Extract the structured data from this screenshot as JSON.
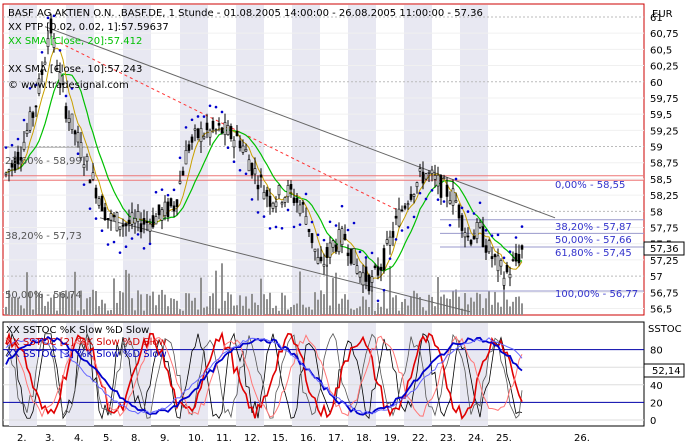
{
  "main_panel": {
    "title": "BASF AG AKTIEN O.N. .BASF.DE, 1 Stunde - 01.08.2005 14:00:00 - 26.08.2005 11:00:00 - 57.36",
    "legend": [
      {
        "text": "XX PTP [0.02, 0.02, 1]:57.59637",
        "color": "#000000"
      },
      {
        "text": "XX SMA [Close, 20]:57.412",
        "color": "#00c000"
      },
      {
        "text": "XX SMA [Close, 10]:57.243",
        "color": "#000000"
      }
    ],
    "watermark": "© www.tradesignal.com",
    "axis_unit": "EUR",
    "price_ticks": [
      "61",
      "60,75",
      "60,5",
      "60,25",
      "60",
      "59,75",
      "59,5",
      "59,25",
      "59",
      "58,75",
      "58,5",
      "58,25",
      "58",
      "57,75",
      "57,5",
      "57,25",
      "57",
      "56,75",
      "56,5"
    ],
    "current_price_label": "57,36",
    "fib_left": [
      {
        "text": "23,60% - 58,99"
      },
      {
        "text": "38,20% - 57,73"
      },
      {
        "text": "50,00% - 56,74"
      }
    ],
    "fib_right": [
      {
        "text": "0,00% - 58,55",
        "color": "#3333cc"
      },
      {
        "text": "38,20% - 57,87",
        "color": "#3333cc"
      },
      {
        "text": "50,00% - 57,66",
        "color": "#3333cc"
      },
      {
        "text": "61,80% - 57,45",
        "color": "#3333cc"
      },
      {
        "text": "100,00% - 56,77",
        "color": "#3333cc"
      }
    ]
  },
  "osc_panel": {
    "legend": [
      {
        "text": "XX SSTOC %K Slow %D Slow",
        "color": "#000000"
      },
      {
        "text": "XX SSTOC [2] %K Slow %D Slow",
        "color": "#d00000"
      },
      {
        "text": "XX SSTOC [3] %K Slow %D Slow",
        "color": "#0000c0"
      }
    ],
    "axis_unit": "SSTOC",
    "ticks": [
      "80",
      "60",
      "40",
      "20",
      "0"
    ],
    "current_value_label": "52,14"
  },
  "x_axis": {
    "labels": [
      "2.",
      "3.",
      "4.",
      "5.",
      "8.",
      "9.",
      "10.",
      "11.",
      "12.",
      "15.",
      "16.",
      "17.",
      "18.",
      "19.",
      "22.",
      "23.",
      "24.",
      "25.",
      "26."
    ]
  },
  "colors": {
    "frame": "#cc0000",
    "shade": "#e8e8f2",
    "sma20": "#00c000",
    "psar": "#0000cc",
    "fib_line": "#9999cc",
    "resistance": "#ff3333",
    "stoch_red": "#e00000",
    "stoch_blue": "#0000cc"
  }
}
